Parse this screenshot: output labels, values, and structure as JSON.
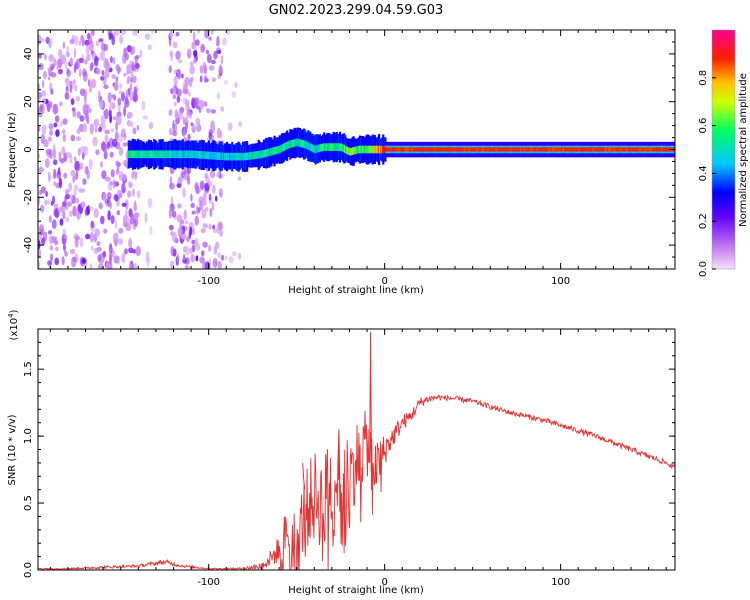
{
  "title": "GN02.2023.299.04.59.G03",
  "chart_data": [
    {
      "type": "heatmap",
      "xlabel": "Height of straight line (km)",
      "ylabel": "Frequency (Hz)",
      "xlim": [
        -197,
        165
      ],
      "ylim": [
        -50,
        50
      ],
      "x_ticks": [
        -100,
        0,
        100
      ],
      "y_ticks": [
        -40,
        -20,
        0,
        20,
        40
      ],
      "colorbar": {
        "label": "Normalized spectral amplitude",
        "range": [
          0.0,
          1.0
        ],
        "ticks": [
          0.0,
          0.2,
          0.4,
          0.6,
          0.8
        ],
        "tick_labels": [
          "0.0",
          "0.2",
          "0.4",
          "0.6",
          "0.8"
        ],
        "colormap": [
          "#e8b8f8",
          "#8000ff",
          "#0000ff",
          "#00e0ff",
          "#00ff40",
          "#ffff00",
          "#ff8000",
          "#ff0000",
          "#ff0080"
        ]
      },
      "noise_bands": [
        {
          "x_range": [
            -197,
            -140
          ],
          "density": "high"
        },
        {
          "x_range": [
            -140,
            -130
          ],
          "density": "low"
        },
        {
          "x_range": [
            -122,
            -92
          ],
          "density": "high"
        },
        {
          "x_range": [
            -92,
            -82
          ],
          "density": "low"
        }
      ],
      "signal_ridge": {
        "x": [
          -146,
          -130,
          -110,
          -90,
          -80,
          -70,
          -60,
          -55,
          -50,
          -45,
          -40,
          -35,
          -30,
          -25,
          -20,
          -15,
          -10,
          0,
          20,
          50,
          100,
          165
        ],
        "frequency": [
          -2,
          -2,
          -2,
          -3,
          -3,
          -2,
          0,
          2,
          3,
          2,
          0,
          1,
          1,
          1,
          -1,
          0,
          0,
          0,
          0,
          0,
          0,
          0
        ],
        "amplitude": [
          0.55,
          0.5,
          0.45,
          0.45,
          0.5,
          0.5,
          0.55,
          0.55,
          0.55,
          0.5,
          0.45,
          0.55,
          0.55,
          0.6,
          0.65,
          0.6,
          0.6,
          0.9,
          0.95,
          0.95,
          0.95,
          0.95
        ]
      }
    },
    {
      "type": "line",
      "xlabel": "Height of straight line (km)",
      "ylabel": "SNR (10 * v/v)",
      "y_multiplier": "(x10⁴)",
      "y_multiplier_base": "(x10",
      "y_multiplier_exp": "4",
      "y_multiplier_close": ")",
      "xlim": [
        -197,
        165
      ],
      "ylim": [
        0,
        1.8
      ],
      "x_ticks": [
        -100,
        0,
        100
      ],
      "y_ticks": [
        0.0,
        0.5,
        1.0,
        1.5
      ],
      "y_tick_labels": [
        "0.0",
        "0.5",
        "1.0",
        "1.5"
      ],
      "series": [
        {
          "color": "#e83030",
          "x": [
            -197,
            -180,
            -160,
            -140,
            -125,
            -115,
            -100,
            -90,
            -80,
            -70,
            -62,
            -55,
            -50,
            -45,
            -40,
            -35,
            -30,
            -25,
            -20,
            -15,
            -10,
            -5,
            0,
            5,
            10,
            15,
            20,
            25,
            30,
            40,
            50,
            60,
            70,
            80,
            90,
            100,
            110,
            120,
            130,
            140,
            150,
            160,
            165
          ],
          "y": [
            0.01,
            0.01,
            0.02,
            0.03,
            0.06,
            0.03,
            0.01,
            0.01,
            0.01,
            0.03,
            0.12,
            0.3,
            0.2,
            0.45,
            0.55,
            0.5,
            0.65,
            0.75,
            0.7,
            0.85,
            0.95,
            0.75,
            0.9,
            1.0,
            1.1,
            1.15,
            1.25,
            1.28,
            1.29,
            1.28,
            1.26,
            1.22,
            1.18,
            1.15,
            1.12,
            1.08,
            1.04,
            1.0,
            0.95,
            0.9,
            0.85,
            0.8,
            0.76
          ],
          "noise_amplitude": [
            0.005,
            0.005,
            0.01,
            0.01,
            0.02,
            0.01,
            0.005,
            0.005,
            0.01,
            0.03,
            0.08,
            0.2,
            0.25,
            0.3,
            0.35,
            0.35,
            0.4,
            0.35,
            0.3,
            0.3,
            0.25,
            0.2,
            0.12,
            0.08,
            0.06,
            0.05,
            0.04,
            0.03,
            0.02,
            0.02,
            0.02,
            0.02,
            0.02,
            0.02,
            0.02,
            0.02,
            0.02,
            0.02,
            0.02,
            0.02,
            0.02,
            0.02,
            0.02
          ]
        }
      ],
      "peaks": [
        {
          "x": -8,
          "y": 1.78
        },
        {
          "x": -26,
          "y": 1.05
        },
        {
          "x": -46,
          "y": 0.68
        }
      ]
    }
  ]
}
